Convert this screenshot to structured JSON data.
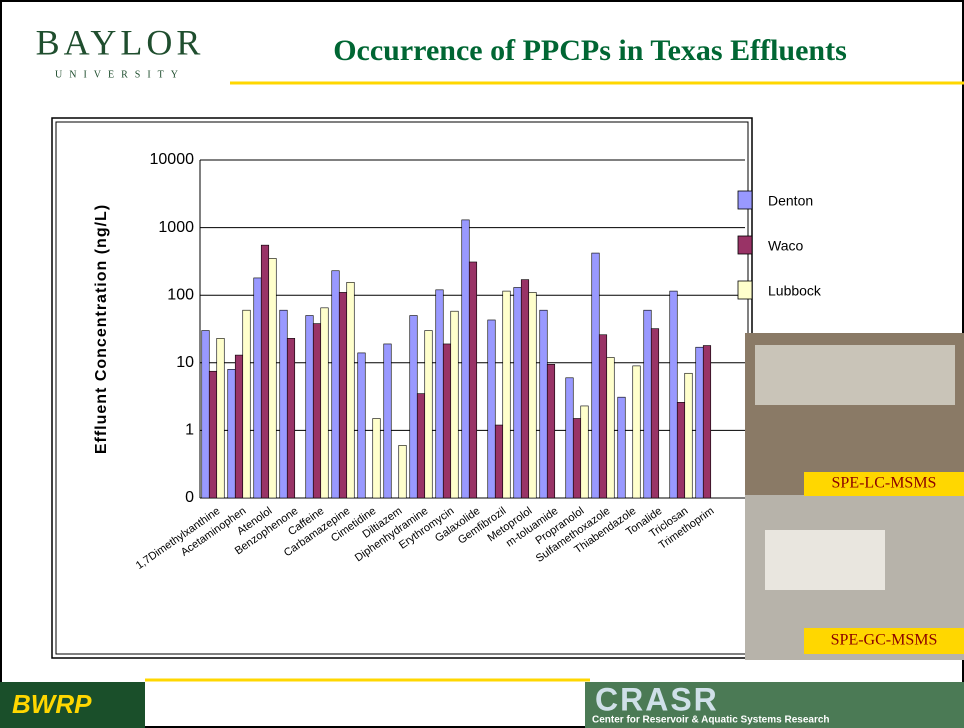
{
  "header": {
    "logo": "BAYLOR",
    "logo_sub": "UNIVERSITY"
  },
  "photos": [
    "SPE-LC-MSMS",
    "SPE-GC-MSMS"
  ],
  "footer": {
    "left": "BWRP",
    "right": "CRASR",
    "right_sub": "Center for Reservoir & Aquatic Systems Research"
  },
  "chart_data": {
    "type": "bar",
    "title": "Occurrence of PPCPs in Texas Effluents",
    "y_label": "Effluent Concentration (ng/L)",
    "log_scale": true,
    "grid": true,
    "legend": "right",
    "ylim": [
      0.1,
      10000
    ],
    "yticks": [
      {
        "value": 0.1,
        "label": "0"
      },
      1,
      10,
      100,
      1000,
      10000
    ],
    "categories": [
      "1,7Dimethylxanthine",
      "Acetaminophen",
      "Atenolol",
      "Benzophenone",
      "Caffeine",
      "Carbamazepine",
      "Cimetidine",
      "Diltiazem",
      "Diphenhydramine",
      "Erythromycin",
      "Galaxolide",
      "Gemfibrozil",
      "Metoprolol",
      "m-toluamide",
      "Propranolol",
      "Sulfamethoxazole",
      "Thiabendazole",
      "Tonalide",
      "Triclosan",
      "Trimethoprim"
    ],
    "series": [
      {
        "name": "Denton",
        "color": "#9999ff",
        "values": [
          30,
          8,
          180,
          60,
          50,
          230,
          14,
          19,
          50,
          120,
          1300,
          43,
          130,
          60,
          6,
          420,
          3.1,
          60,
          115,
          17
        ]
      },
      {
        "name": "Waco",
        "color": "#993366",
        "values": [
          7.5,
          13,
          550,
          23,
          38,
          110,
          null,
          null,
          3.5,
          19,
          310,
          1.2,
          170,
          9.5,
          1.5,
          26,
          null,
          32,
          2.6,
          18
        ]
      },
      {
        "name": "Lubbock",
        "color": "#ffffcc",
        "values": [
          23,
          60,
          350,
          null,
          65,
          155,
          1.5,
          0.6,
          30,
          58,
          null,
          115,
          110,
          null,
          2.3,
          12,
          9,
          null,
          7,
          null
        ]
      }
    ]
  }
}
